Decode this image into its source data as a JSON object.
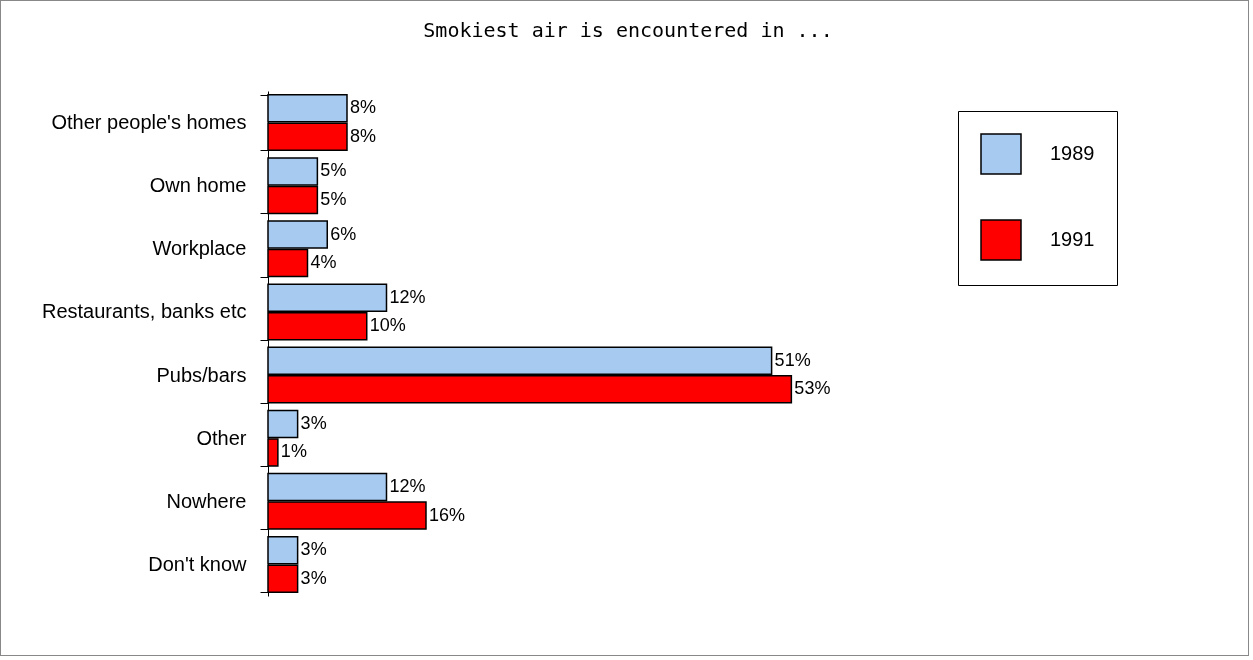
{
  "chart_data": {
    "type": "bar",
    "orientation": "horizontal",
    "title": "Smokiest air is encountered in ...",
    "categories": [
      "Other people's homes",
      "Own home",
      "Workplace",
      "Restaurants, banks etc",
      "Pubs/bars",
      "Other",
      "Nowhere",
      "Don't know"
    ],
    "series": [
      {
        "name": "1989",
        "color": "#a6caf0",
        "values": [
          8,
          5,
          6,
          12,
          51,
          3,
          12,
          3
        ],
        "value_labels": [
          "8%",
          "5%",
          "6%",
          "12%",
          "51%",
          "3%",
          "12%",
          "3%"
        ]
      },
      {
        "name": "1991",
        "color": "#ff0000",
        "values": [
          8,
          5,
          4,
          10,
          53,
          1,
          16,
          3
        ],
        "value_labels": [
          "8%",
          "5%",
          "4%",
          "10%",
          "53%",
          "1%",
          "16%",
          "3%"
        ]
      }
    ],
    "legend": "top right"
  }
}
